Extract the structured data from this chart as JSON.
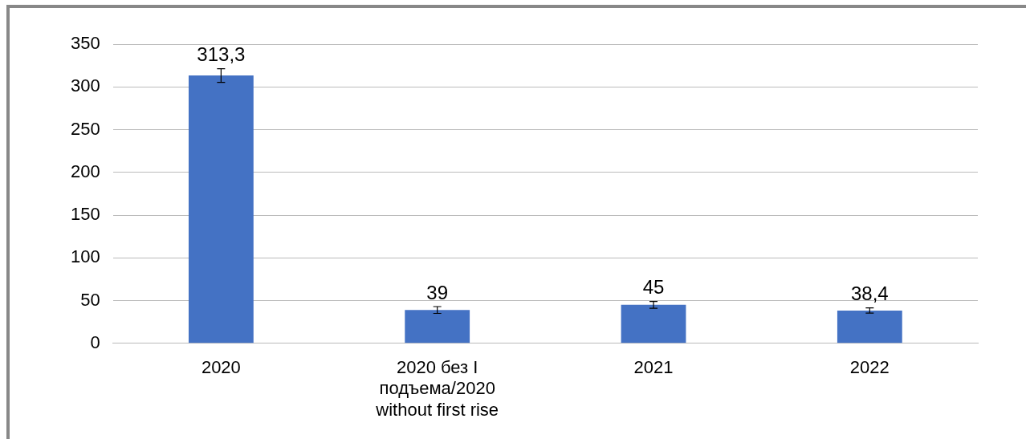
{
  "chart_data": {
    "type": "bar",
    "categories": [
      "2020",
      "2020 без I подъема/2020 without first rise",
      "2021",
      "2022"
    ],
    "values": [
      313.3,
      39,
      45,
      38.4
    ],
    "value_labels": [
      "313,3",
      "39",
      "45",
      "38,4"
    ],
    "errors": [
      8,
      4,
      4,
      3
    ],
    "color": "#4472c4",
    "ylim": [
      0,
      350
    ],
    "yticks": [
      0,
      50,
      100,
      150,
      200,
      250,
      300,
      350
    ],
    "grid": "y",
    "legend": false
  }
}
